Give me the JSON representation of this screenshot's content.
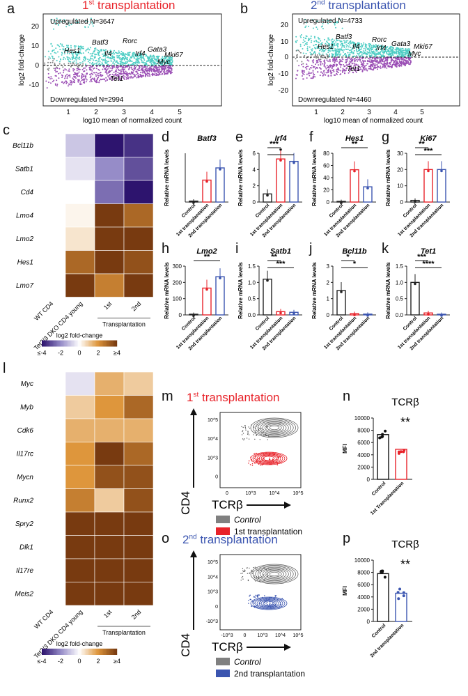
{
  "panel_labels": [
    "a",
    "b",
    "c",
    "d",
    "e",
    "f",
    "g",
    "h",
    "i",
    "j",
    "k",
    "l",
    "m",
    "n",
    "o",
    "p"
  ],
  "panel_a": {
    "title_main": "1",
    "title_sup": "st",
    "title_rest": " transplantation",
    "up": "Upregulated N=3647",
    "down": "Downregulated N=2994",
    "genes": [
      "Batf3",
      "Hes1",
      "Il4",
      "Rorc",
      "Irf4",
      "Gata3",
      "Mki67",
      "Myc",
      "Tet1"
    ],
    "ylabel": "log2 fold-change",
    "xlabel": "log10 mean of normalized count",
    "yticks": [
      "20",
      "10",
      "0",
      "-10"
    ],
    "xticks": [
      "1",
      "2",
      "3",
      "4",
      "5"
    ]
  },
  "panel_b": {
    "title_main": "2",
    "title_sup": "nd",
    "title_rest": " transplantation",
    "up": "Upregulated N=4733",
    "down": "Downregulated N=4460",
    "genes": [
      "Batf3",
      "Hes1",
      "Il4",
      "Rorc",
      "Gata3",
      "Irf4",
      "Mki67",
      "Myc",
      "Tet1"
    ],
    "ylabel": "log2 fold-change",
    "xlabel": "log10 mean of normalized count",
    "yticks": [
      "20",
      "10",
      "0",
      "-10",
      "-20"
    ],
    "xticks": [
      "1",
      "2",
      "3",
      "4",
      "5"
    ]
  },
  "heatmap_c": {
    "rows": [
      "Bcl11b",
      "Satb1",
      "Cd4",
      "Lmo4",
      "Lmo2",
      "Hes1",
      "Lmo7"
    ],
    "cols": [
      "WT CD4",
      "Tet2/3 DKO CD4 young",
      "1st",
      "2nd"
    ],
    "group_label": "Transplantation",
    "values": [
      [
        0,
        -1,
        -4,
        -3.5
      ],
      [
        0,
        -0.5,
        -2,
        -3
      ],
      [
        0,
        0,
        -2.5,
        -4
      ],
      [
        0,
        0.2,
        4,
        3
      ],
      [
        0,
        0.5,
        4,
        4
      ],
      [
        0,
        3,
        4,
        3.5
      ],
      [
        0,
        4,
        2.5,
        4
      ]
    ],
    "legend_title": "log2 fold-change",
    "legend_ticks": [
      "≤-4",
      "-2",
      "0",
      "2",
      "≥4"
    ]
  },
  "heatmap_l": {
    "rows": [
      "Myc",
      "Myb",
      "Cdk6",
      "Il17rc",
      "Mycn",
      "Runx2",
      "Spry2",
      "Dlk1",
      "Il17re",
      "Meis2"
    ],
    "cols": [
      "WT CD4",
      "Tet2/3 DKO CD4 young",
      "1st",
      "2nd"
    ],
    "group_label": "Transplantation",
    "values": [
      [
        0,
        -0.5,
        1.5,
        1
      ],
      [
        0,
        1,
        2,
        3
      ],
      [
        0,
        1.5,
        1.5,
        1.5
      ],
      [
        0,
        2,
        4,
        3
      ],
      [
        0,
        2,
        3.5,
        3.5
      ],
      [
        0,
        2.5,
        1,
        3.5
      ],
      [
        0,
        4,
        4,
        4
      ],
      [
        0,
        4,
        4,
        4
      ],
      [
        0,
        4,
        4,
        4
      ],
      [
        0,
        4,
        4,
        4
      ]
    ],
    "legend_title": "log2 fold-change",
    "legend_ticks": [
      "≤-4",
      "-2",
      "0",
      "2",
      "≥4"
    ]
  },
  "qpcr_ylabel": "Relative mRNA levels",
  "qpcr_groups": [
    "Control",
    "1st transplantation",
    "2nd transplantation"
  ],
  "bar_panels": [
    {
      "id": "d",
      "gene": "Batf3",
      "ymax": 1,
      "ticks": [],
      "values": [
        0.02,
        0.45,
        0.7
      ],
      "sig": []
    },
    {
      "id": "e",
      "gene": "Irf4",
      "ymax": 6,
      "ticks": [
        "0",
        "2",
        "4",
        "6"
      ],
      "values": [
        1,
        5.3,
        5
      ],
      "sig": [
        "***",
        "*"
      ]
    },
    {
      "id": "f",
      "gene": "Hes1",
      "ymax": 80,
      "ticks": [
        "0",
        "20",
        "40",
        "60",
        "80"
      ],
      "values": [
        1,
        53,
        25
      ],
      "sig": [
        "**"
      ]
    },
    {
      "id": "g",
      "gene": "Ki67",
      "ymax": 30,
      "ticks": [
        "0",
        "10",
        "20",
        "30"
      ],
      "values": [
        1,
        20,
        20
      ],
      "sig": [
        "**",
        "***"
      ]
    },
    {
      "id": "h",
      "gene": "Lmo2",
      "ymax": 300,
      "ticks": [
        "0",
        "100",
        "200",
        "300"
      ],
      "values": [
        1,
        165,
        235
      ],
      "sig": [
        "**"
      ]
    },
    {
      "id": "i",
      "gene": "Satb1",
      "ymax": 1.5,
      "ticks": [
        "0.0",
        "0.5",
        "1.0",
        "1.5"
      ],
      "values": [
        1.1,
        0.1,
        0.08
      ],
      "sig": [
        "**",
        "***"
      ]
    },
    {
      "id": "j",
      "gene": "Bcl11b",
      "ymax": 3,
      "ticks": [
        "0",
        "1",
        "2",
        "3"
      ],
      "values": [
        1.5,
        0.08,
        0.05
      ],
      "sig": [
        "*",
        "*"
      ]
    },
    {
      "id": "k",
      "gene": "Tet1",
      "ymax": 1.5,
      "ticks": [
        "0.0",
        "0.5",
        "1.0",
        "1.5"
      ],
      "values": [
        1,
        0.06,
        0.02
      ],
      "sig": [
        "***",
        "****"
      ]
    }
  ],
  "flow_m": {
    "title_main": "1",
    "title_sup": "st",
    "title_rest": " transplantation",
    "xlabel": "TCRβ",
    "ylabel": "CD4",
    "legend": [
      {
        "label": "Control",
        "color": "#808080"
      },
      {
        "label": "1st transplantation",
        "color": "#e8232a"
      }
    ],
    "yticks": [
      "10^5",
      "10^4",
      "10^3",
      "0"
    ],
    "xticks": [
      "0",
      "10^3",
      "10^4",
      "10^5"
    ]
  },
  "flow_o": {
    "title_main": "2",
    "title_sup": "nd",
    "title_rest": " transplantation",
    "xlabel": "TCRβ",
    "ylabel": "CD4",
    "legend": [
      {
        "label": "Control",
        "color": "#808080"
      },
      {
        "label": "2nd transplantation",
        "color": "#3b55b0"
      }
    ],
    "yticks": [
      "10^5",
      "10^4",
      "10^3",
      "0",
      "-10^3"
    ],
    "xticks": [
      "-10^3",
      "0",
      "10^3",
      "10^4",
      "10^5"
    ]
  },
  "mfi_n": {
    "title": "TCRβ",
    "ylabel": "MFI",
    "ticks": [
      "0",
      "2000",
      "4000",
      "6000",
      "8000",
      "10000"
    ],
    "ymax": 10000,
    "categories": [
      "Control",
      "1st Transplantation"
    ],
    "values": [
      7300,
      4900
    ],
    "sig": "**",
    "color2": "#e8232a"
  },
  "mfi_p": {
    "title": "TCRβ",
    "ylabel": "MFI",
    "ticks": [
      "0",
      "2000",
      "4000",
      "6000",
      "8000",
      "10000"
    ],
    "ymax": 10000,
    "categories": [
      "Control",
      "2nd transplantation"
    ],
    "values": [
      7800,
      4600
    ],
    "sig": "**",
    "color2": "#3b55b0"
  },
  "colors": {
    "up": "#4ecdc4",
    "down": "#9b4fb5",
    "neutral": "#808080",
    "red": "#e8232a",
    "blue": "#3b55b0"
  },
  "chart_data": [
    {
      "type": "bar",
      "title": "Irf4",
      "categories": [
        "Control",
        "1st transplantation",
        "2nd transplantation"
      ],
      "values": [
        1,
        5.3,
        5
      ],
      "ylabel": "Relative mRNA levels",
      "ylim": [
        0,
        6
      ]
    },
    {
      "type": "bar",
      "title": "Hes1",
      "categories": [
        "Control",
        "1st transplantation",
        "2nd transplantation"
      ],
      "values": [
        1,
        53,
        25
      ],
      "ylabel": "Relative mRNA levels",
      "ylim": [
        0,
        80
      ]
    },
    {
      "type": "bar",
      "title": "Ki67",
      "categories": [
        "Control",
        "1st transplantation",
        "2nd transplantation"
      ],
      "values": [
        1,
        20,
        20
      ],
      "ylabel": "Relative mRNA levels",
      "ylim": [
        0,
        30
      ]
    },
    {
      "type": "bar",
      "title": "Lmo2",
      "categories": [
        "Control",
        "1st transplantation",
        "2nd transplantation"
      ],
      "values": [
        1,
        165,
        235
      ],
      "ylabel": "Relative mRNA levels",
      "ylim": [
        0,
        300
      ]
    },
    {
      "type": "bar",
      "title": "TCRβ",
      "categories": [
        "Control",
        "1st Transplantation"
      ],
      "values": [
        7300,
        4900
      ],
      "ylabel": "MFI",
      "ylim": [
        0,
        10000
      ]
    },
    {
      "type": "bar",
      "title": "TCRβ",
      "categories": [
        "Control",
        "2nd transplantation"
      ],
      "values": [
        7800,
        4600
      ],
      "ylabel": "MFI",
      "ylim": [
        0,
        10000
      ]
    }
  ]
}
